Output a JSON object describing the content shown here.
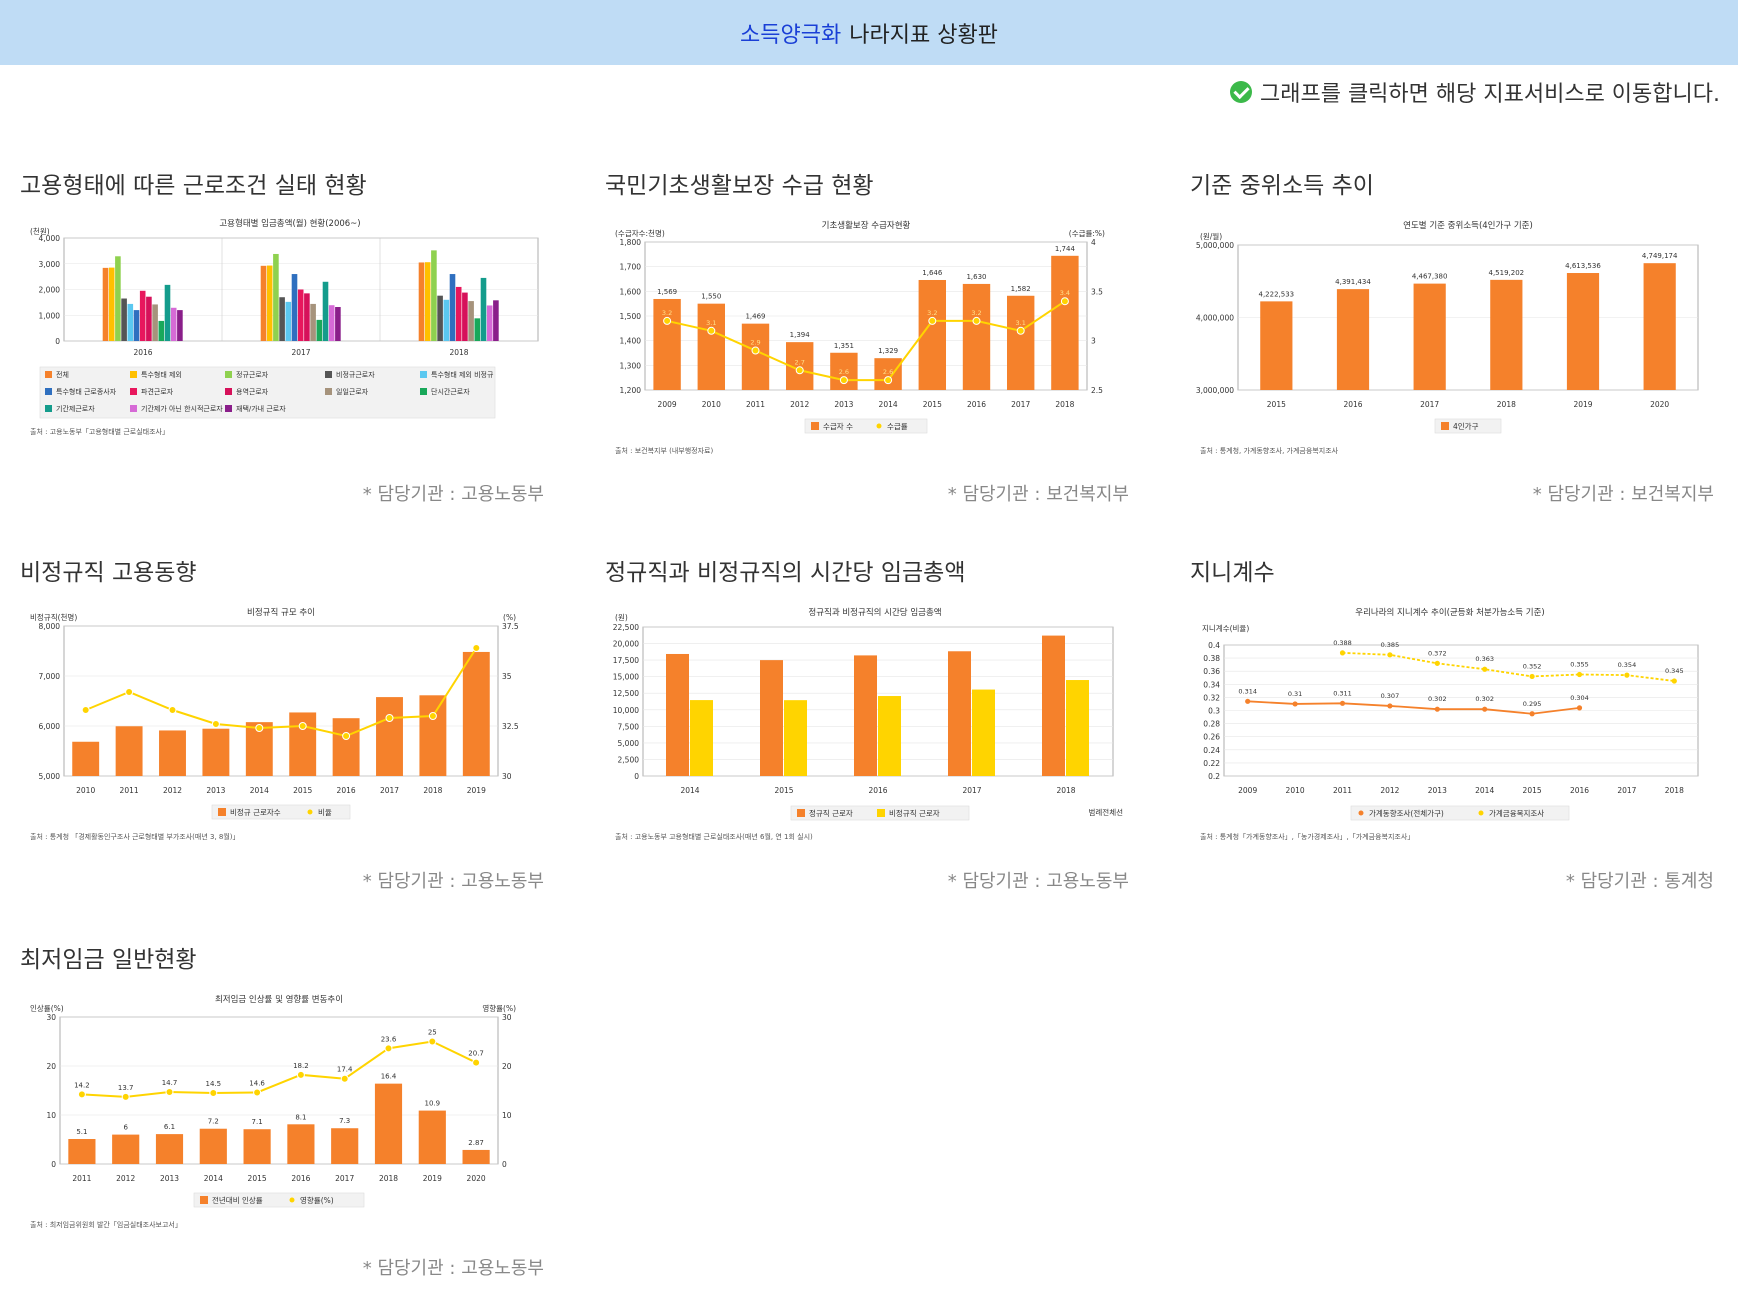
{
  "header": {
    "highlight": "소득양극화",
    "rest": "나라지표 상황판"
  },
  "notice": {
    "icon": "check-circle-icon",
    "text": "그래프를 클릭하면 해당 지표서비스로 이동합니다."
  },
  "colors": {
    "orange": "#f5812b",
    "yellow": "#ffd400",
    "header_bg": "#bfdcf5"
  },
  "panels": [
    {
      "title": "고용형태에 따른 근로조건 실태 현황",
      "agency": "* 담당기관 : 고용노동부",
      "chart_data": {
        "type": "bar",
        "title": "고용형태별 임금총액(월) 현황(2006~)",
        "ylabel": "(천원)",
        "ylim": [
          0,
          4000
        ],
        "yticks": [
          "4,000",
          "3,000",
          "2,000",
          "1,000",
          "0"
        ],
        "categories": [
          "2016",
          "2017",
          "2018"
        ],
        "series": [
          {
            "name": "전체",
            "color": "#f5812b",
            "values": [
              2840,
              2920,
              3050
            ]
          },
          {
            "name": "특수형태 제외",
            "color": "#ffc000",
            "values": [
              2850,
              2930,
              3060
            ]
          },
          {
            "name": "정규근로자",
            "color": "#8fd14f",
            "values": [
              3290,
              3380,
              3520
            ]
          },
          {
            "name": "비정규근로자",
            "color": "#555555",
            "values": [
              1650,
              1700,
              1760
            ]
          },
          {
            "name": "특수형태 제외 비정규",
            "color": "#5bc8f0",
            "values": [
              1440,
              1520,
              1600
            ]
          },
          {
            "name": "특수형태 근로종사자",
            "color": "#2f6fbf",
            "values": [
              1200,
              2600,
              2600
            ]
          },
          {
            "name": "파견근로자",
            "color": "#e8175d",
            "values": [
              1950,
              2000,
              2100
            ]
          },
          {
            "name": "용역근로자",
            "color": "#d6115a",
            "values": [
              1720,
              1850,
              1880
            ]
          },
          {
            "name": "일일근로자",
            "color": "#a6937c",
            "values": [
              1420,
              1440,
              1550
            ]
          },
          {
            "name": "단시간근로자",
            "color": "#19a85a",
            "values": [
              780,
              820,
              880
            ]
          },
          {
            "name": "기간제근로자",
            "color": "#149c8c",
            "values": [
              2180,
              2300,
              2450
            ]
          },
          {
            "name": "기간제가 아닌 한시적근로자",
            "color": "#d66ad6",
            "values": [
              1290,
              1390,
              1380
            ]
          },
          {
            "name": "재택/가내 근로자",
            "color": "#8a1e8a",
            "values": [
              1200,
              1320,
              1580
            ]
          }
        ],
        "source": "출처 : 고용노동부「고용형태별 근로실태조사」"
      }
    },
    {
      "title": "국민기초생활보장 수급 현황",
      "agency": "* 담당기관 : 보건복지부",
      "chart_data": {
        "type": "bar",
        "title": "기초생활보장 수급자현황",
        "ylabel_left": "(수급자수:천명)",
        "ylabel_right": "(수급률:%)",
        "ylim": [
          1200,
          1800
        ],
        "yticks": [
          "1,800",
          "1,700",
          "1,600",
          "1,500",
          "1,400",
          "1,300",
          "1,200"
        ],
        "y2lim": [
          2.5,
          4
        ],
        "y2ticks": [
          "4",
          "3.5",
          "3",
          "2.5"
        ],
        "categories": [
          "2009",
          "2010",
          "2011",
          "2012",
          "2013",
          "2014",
          "2015",
          "2016",
          "2017",
          "2018"
        ],
        "values": [
          1569,
          1550,
          1469,
          1394,
          1351,
          1329,
          1646,
          1630,
          1582,
          1744
        ],
        "value_labels": [
          "1,569",
          "1,550",
          "1,469",
          "1,394",
          "1,351",
          "1,329",
          "1,646",
          "1,630",
          "1,582",
          "1,744"
        ],
        "rate": [
          3.2,
          3.1,
          2.9,
          2.7,
          2.6,
          2.6,
          3.2,
          3.2,
          3.1,
          3.4
        ],
        "legend": [
          "수급자 수",
          "수급률"
        ],
        "source": "출처 : 보건복지부 (내부행정자료)"
      }
    },
    {
      "title": "기준 중위소득 추이",
      "agency": "* 담당기관 : 보건복지부",
      "chart_data": {
        "type": "bar",
        "title": "연도별 기준 중위소득(4인가구 기준)",
        "ylabel": "(원/월)",
        "ylim": [
          3000000,
          5000000
        ],
        "yticks": [
          "5,000,000",
          "4,000,000",
          "3,000,000"
        ],
        "categories": [
          "2015",
          "2016",
          "2017",
          "2018",
          "2019",
          "2020"
        ],
        "values": [
          4222533,
          4391434,
          4467380,
          4519202,
          4613536,
          4749174
        ],
        "value_labels": [
          "4,222,533",
          "4,391,434",
          "4,467,380",
          "4,519,202",
          "4,613,536",
          "4,749,174"
        ],
        "legend": [
          "4인가구"
        ],
        "source": "출처 : 통계청, 가계동향조사, 가계금융복지조사"
      }
    },
    {
      "title": "비정규직 고용동향",
      "agency": "* 담당기관 : 고용노동부",
      "chart_data": {
        "type": "bar",
        "title": "비정규직 규모 추이",
        "ylabel_left": "비정규직(천명)",
        "ylabel_right": "(%)",
        "ylim": [
          5000,
          8000
        ],
        "yticks": [
          "8,000",
          "7,000",
          "6,000",
          "5,000"
        ],
        "y2lim": [
          30,
          37.5
        ],
        "y2ticks": [
          "37.5",
          "35",
          "32.5",
          "30"
        ],
        "categories": [
          "2010",
          "2011",
          "2012",
          "2013",
          "2014",
          "2015",
          "2016",
          "2017",
          "2018",
          "2019"
        ],
        "values": [
          5685,
          5995,
          5911,
          5946,
          6077,
          6271,
          6156,
          6578,
          6614,
          7481
        ],
        "rate": [
          33.3,
          34.2,
          33.3,
          32.6,
          32.4,
          32.5,
          32.0,
          32.9,
          33.0,
          36.4
        ],
        "legend": [
          "비정규 근로자수",
          "비율"
        ],
        "source": "출처 : 통계청 「경제활동인구조사 근로형태별 부가조사(매년 3, 8월)」"
      }
    },
    {
      "title": "정규직과 비정규직의 시간당 임금총액",
      "agency": "* 담당기관 : 고용노동부",
      "chart_data": {
        "type": "bar",
        "title": "정규직과 비정규직의 시간당 임금총액",
        "ylabel": "(원)",
        "ylim": [
          0,
          22500
        ],
        "yticks": [
          "22,500",
          "20,000",
          "17,500",
          "15,000",
          "12,500",
          "10,000",
          "7,500",
          "5,000",
          "2,500",
          "0"
        ],
        "categories": [
          "2014",
          "2015",
          "2016",
          "2017",
          "2018"
        ],
        "series": [
          {
            "name": "정규직 근로자",
            "color": "#f5812b",
            "values": [
              18426,
              17498,
              18212,
              18835,
              21203
            ]
          },
          {
            "name": "비정규직 근로자",
            "color": "#ffd400",
            "values": [
              11463,
              11452,
              12076,
              13053,
              14492
            ]
          }
        ],
        "corner_note": "범례전체선",
        "source": "출처 : 고용노동부 고용형태별 근로실태조사(매년 6월, 연 1회 실시)"
      }
    },
    {
      "title": "지니계수",
      "agency": "* 담당기관 : 통계청",
      "chart_data": {
        "type": "line",
        "title": "우리나라의 지니계수 추이(균등화 처분가능소득 기준)",
        "ylabel": "지니계수(비율)",
        "ylim": [
          0.2,
          0.4
        ],
        "yticks": [
          "0.4",
          "0.38",
          "0.36",
          "0.34",
          "0.32",
          "0.3",
          "0.28",
          "0.26",
          "0.24",
          "0.22",
          "0.2"
        ],
        "x": [
          "2009",
          "2010",
          "2011",
          "2012",
          "2013",
          "2014",
          "2015",
          "2016",
          "2017",
          "2018"
        ],
        "series": [
          {
            "name": "가계동향조사(전체가구)",
            "color": "#f5812b",
            "values": [
              0.314,
              0.31,
              0.311,
              0.307,
              0.302,
              0.302,
              0.295,
              0.304,
              null,
              null
            ],
            "labels": [
              "0.314",
              "0.31",
              "0.311",
              "0.307",
              "0.302",
              "0.302",
              "0.295",
              "0.304",
              "",
              ""
            ]
          },
          {
            "name": "가계금융복지조사",
            "color": "#ffd400",
            "values": [
              null,
              null,
              0.388,
              0.385,
              0.372,
              0.363,
              0.352,
              0.355,
              0.354,
              0.345
            ],
            "labels": [
              "",
              "",
              "0.388",
              "0.385",
              "0.372",
              "0.363",
              "0.352",
              "0.355",
              "0.354",
              "0.345"
            ]
          }
        ],
        "source": "출처 : 통계청「가계동향조사」,「농가경제조사」,「가계금융복지조사」"
      }
    },
    {
      "title": "최저임금 일반현황",
      "agency": "* 담당기관 : 고용노동부",
      "chart_data": {
        "type": "bar",
        "title": "최저임금 인상률 및 영향률 변동추이",
        "ylabel_left": "인상률(%)",
        "ylabel_right": "영향률(%)",
        "ylim": [
          0,
          30
        ],
        "yticks": [
          "30",
          "20",
          "10",
          "0"
        ],
        "y2lim": [
          0,
          30
        ],
        "y2ticks": [
          "30",
          "20",
          "10",
          "0"
        ],
        "categories": [
          "2011",
          "2012",
          "2013",
          "2014",
          "2015",
          "2016",
          "2017",
          "2018",
          "2019",
          "2020"
        ],
        "values": [
          5.1,
          6,
          6.1,
          7.2,
          7.1,
          8.1,
          7.3,
          16.4,
          10.9,
          2.87
        ],
        "value_labels": [
          "5.1",
          "6",
          "6.1",
          "7.2",
          "7.1",
          "8.1",
          "7.3",
          "16.4",
          "10.9",
          "2.87"
        ],
        "rate": [
          14.2,
          13.7,
          14.7,
          14.5,
          14.6,
          18.2,
          17.4,
          23.6,
          25,
          20.7
        ],
        "rate_labels": [
          "14.2",
          "13.7",
          "14.7",
          "14.5",
          "14.6",
          "18.2",
          "17.4",
          "23.6",
          "25",
          "20.7"
        ],
        "legend": [
          "전년대비 인상률",
          "영향률(%)"
        ],
        "source": "출처 : 최저임금위원회 발간「임금실태조사보고서」"
      }
    }
  ]
}
